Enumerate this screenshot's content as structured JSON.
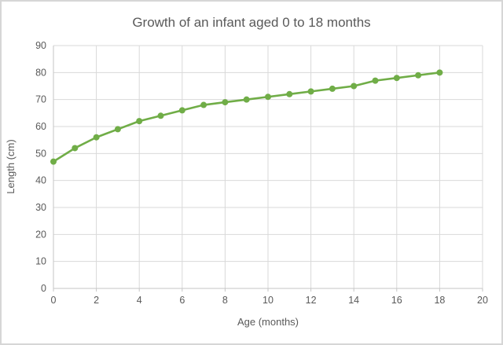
{
  "chart_data": {
    "type": "line",
    "title": "Growth of an infant aged 0 to 18 months",
    "xlabel": "Age (months)",
    "ylabel": "Length (cm)",
    "x": [
      0,
      1,
      2,
      3,
      4,
      5,
      6,
      7,
      8,
      9,
      10,
      11,
      12,
      13,
      14,
      15,
      16,
      17,
      18
    ],
    "values": [
      47,
      52,
      56,
      59,
      62,
      64,
      66,
      68,
      69,
      70,
      71,
      72,
      73,
      74,
      75,
      77,
      78,
      79,
      80
    ],
    "xlim": [
      0,
      20
    ],
    "ylim": [
      0,
      90
    ],
    "x_ticks": [
      0,
      2,
      4,
      6,
      8,
      10,
      12,
      14,
      16,
      18,
      20
    ],
    "y_ticks": [
      0,
      10,
      20,
      30,
      40,
      50,
      60,
      70,
      80,
      90
    ],
    "grid": true,
    "legend": "none",
    "marker": "circle",
    "line_color": "#70AD47",
    "grid_color": "#d9d9d9",
    "axis_color": "#c6c6c6",
    "text_color": "#595959"
  }
}
